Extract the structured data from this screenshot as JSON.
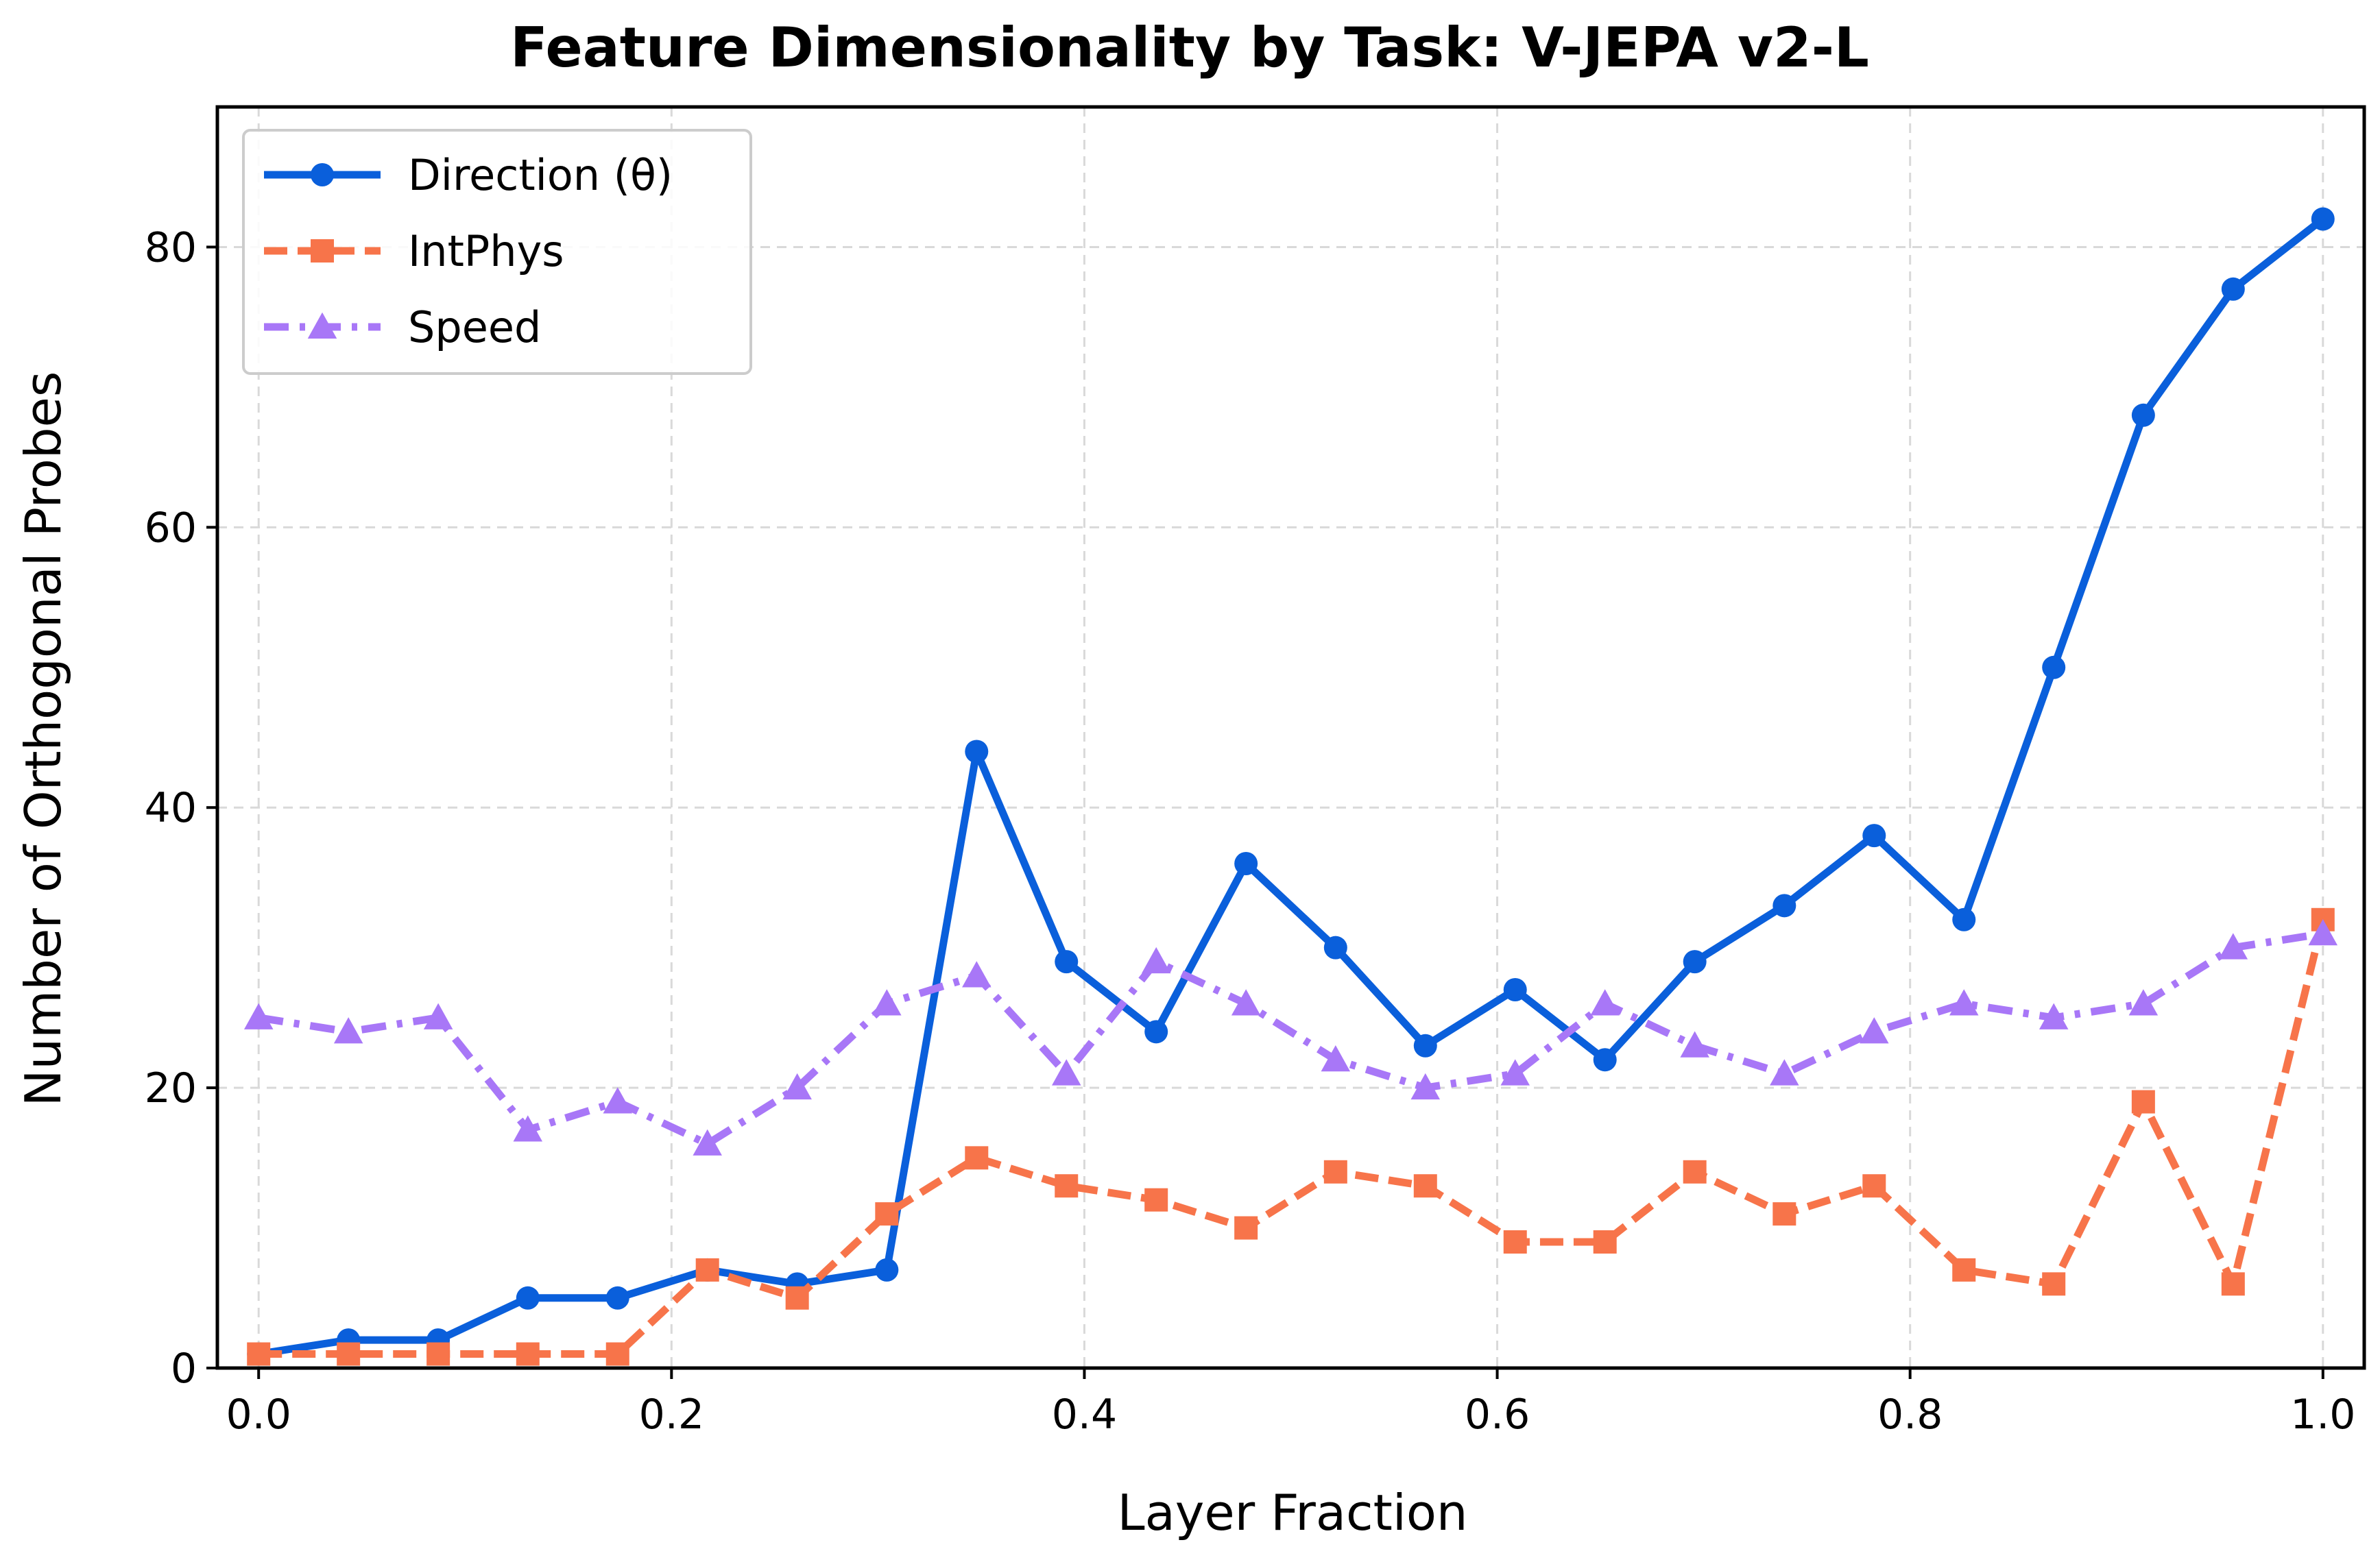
{
  "chart_data": {
    "type": "line",
    "title": "Feature Dimensionality by Task: V-JEPA v2-L",
    "xlabel": "Layer Fraction",
    "ylabel": "Number of Orthogonal Probes",
    "xlim": [
      -0.02,
      1.02
    ],
    "ylim": [
      0,
      90
    ],
    "xticks": [
      0.0,
      0.2,
      0.4,
      0.6,
      0.8,
      1.0
    ],
    "xtick_labels": [
      "0.0",
      "0.2",
      "0.4",
      "0.6",
      "0.8",
      "1.0"
    ],
    "yticks": [
      0,
      20,
      40,
      60,
      80
    ],
    "ytick_labels": [
      "0",
      "20",
      "40",
      "60",
      "80"
    ],
    "grid": true,
    "legend_position": "top-left",
    "x": [
      0.0,
      0.0435,
      0.087,
      0.1304,
      0.1739,
      0.2174,
      0.2609,
      0.3043,
      0.3478,
      0.3913,
      0.4348,
      0.4783,
      0.5217,
      0.5652,
      0.6087,
      0.6522,
      0.6957,
      0.7391,
      0.7826,
      0.8261,
      0.8696,
      0.913,
      0.9565,
      1.0
    ],
    "series": [
      {
        "name": "Direction (θ)",
        "color": "#0a5fdb",
        "marker": "circle",
        "dash": "solid",
        "values": [
          1,
          2,
          2,
          5,
          5,
          7,
          6,
          7,
          44,
          29,
          24,
          36,
          30,
          23,
          27,
          22,
          29,
          33,
          38,
          32,
          50,
          68,
          77,
          82
        ]
      },
      {
        "name": "IntPhys",
        "color": "#f7744a",
        "marker": "square",
        "dash": "dashed",
        "values": [
          1,
          1,
          1,
          1,
          1,
          7,
          5,
          11,
          15,
          13,
          12,
          10,
          14,
          13,
          9,
          9,
          14,
          11,
          13,
          7,
          6,
          19,
          6,
          32
        ]
      },
      {
        "name": "Speed",
        "color": "#a877f7",
        "marker": "triangle",
        "dash": "dashdot",
        "values": [
          25,
          24,
          25,
          17,
          19,
          16,
          20,
          26,
          28,
          21,
          29,
          26,
          22,
          20,
          21,
          26,
          23,
          21,
          24,
          26,
          25,
          26,
          30,
          31
        ]
      }
    ]
  }
}
